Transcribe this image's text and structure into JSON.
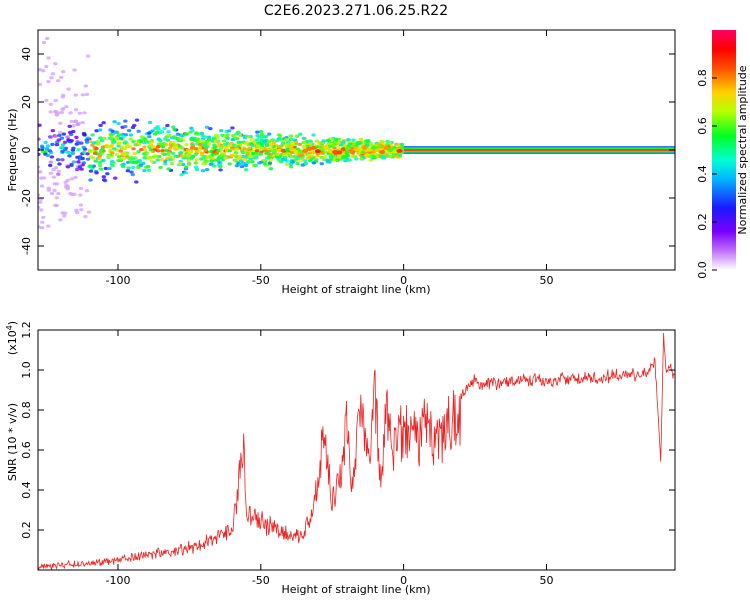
{
  "title": "C2E6.2023.271.06.25.R22",
  "spectrogram": {
    "xlabel": "Height of straight line (km)",
    "ylabel": "Frequency (Hz)",
    "xlim": [
      -128,
      95
    ],
    "ylim": [
      -50,
      50
    ],
    "xticks": [
      -100,
      -50,
      0,
      50
    ],
    "yticks": [
      -40,
      -20,
      0,
      20,
      40
    ],
    "colorbar": {
      "label": "Normalized spectral amplitude",
      "ticks": [
        "0.0",
        "0.2",
        "0.4",
        "0.6",
        "0.8"
      ],
      "range": [
        0,
        1
      ],
      "colormap": "white-purple-blue-cyan-green-yellow-orange-red-magenta"
    },
    "tone_line": {
      "frequency_hz": 0,
      "start_km": 0,
      "end_km": 95,
      "amplitude": 0.85
    }
  },
  "chart_data": {
    "type": "line",
    "title": "C2E6.2023.271.06.25.R22",
    "xlabel": "Height of straight line (km)",
    "ylabel": "SNR (10 * v/v)",
    "scale_label": "(x10",
    "scale_exponent": "4",
    "scale_close": ")",
    "xlim": [
      -128,
      95
    ],
    "ylim": [
      0,
      1.2
    ],
    "xticks": [
      -100,
      -50,
      0,
      50
    ],
    "yticks": [
      0.2,
      0.4,
      0.6,
      0.8,
      1.0,
      1.2
    ],
    "color": "#ee2222",
    "series": [
      {
        "x": [
          -128,
          -120,
          -110,
          -100,
          -90,
          -80,
          -70,
          -65,
          -60,
          -58,
          -56,
          -55,
          -50,
          -45,
          -40,
          -35,
          -32,
          -30,
          -28,
          -26,
          -25,
          -22,
          -20,
          -18,
          -15,
          -12,
          -10,
          -8,
          -6,
          -4,
          -2,
          0,
          3,
          5,
          8,
          10,
          12,
          15,
          18,
          20,
          22,
          25,
          28,
          30,
          35,
          40,
          45,
          50,
          55,
          60,
          65,
          70,
          75,
          80,
          85,
          88,
          90,
          91,
          92,
          93,
          95
        ],
        "y": [
          0.02,
          0.03,
          0.04,
          0.06,
          0.09,
          0.12,
          0.16,
          0.2,
          0.25,
          0.5,
          0.84,
          0.35,
          0.3,
          0.25,
          0.2,
          0.22,
          0.35,
          0.5,
          0.85,
          0.55,
          0.4,
          0.6,
          0.9,
          0.5,
          0.95,
          0.6,
          1.1,
          0.5,
          0.95,
          0.75,
          0.85,
          0.8,
          0.85,
          0.75,
          0.9,
          0.82,
          0.78,
          0.88,
          0.92,
          0.9,
          0.93,
          0.97,
          0.94,
          0.96,
          0.96,
          0.97,
          0.98,
          0.97,
          0.98,
          0.98,
          0.99,
          0.99,
          1.0,
          1.0,
          1.0,
          1.08,
          0.55,
          1.2,
          1.0,
          1.05,
          0.98
        ]
      }
    ]
  }
}
